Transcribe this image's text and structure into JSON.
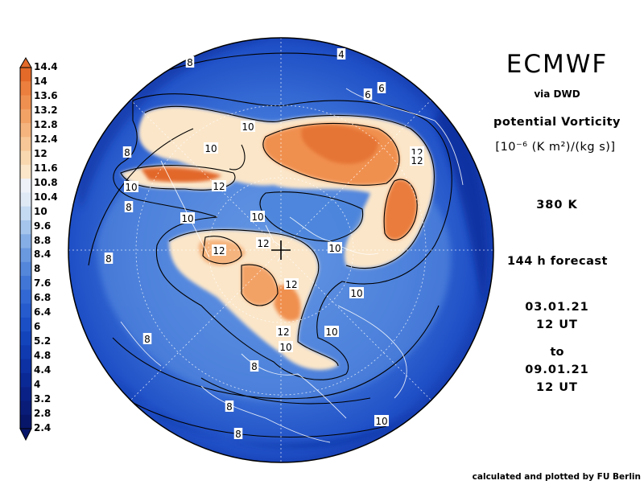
{
  "header": {
    "title": "ECMWF",
    "via": "via DWD",
    "parameter": "potential Vorticity",
    "units": "[10⁻⁶ (K m²)/(kg s)]",
    "level": "380 K",
    "forecast": "144 h forecast",
    "init_date": "03.01.21",
    "init_time": "12 UT",
    "to_label": "to",
    "valid_date": "09.01.21",
    "valid_time": "12 UT"
  },
  "footer": {
    "credit": "calculated and plotted by FU Berlin"
  },
  "colorbar": {
    "labels": [
      "14.4",
      "14",
      "13.6",
      "13.2",
      "12.8",
      "12.4",
      "12",
      "11.6",
      "10.8",
      "10.4",
      "10",
      "9.6",
      "8.8",
      "8.4",
      "8",
      "7.6",
      "6.8",
      "6.4",
      "6",
      "5.2",
      "4.8",
      "4.4",
      "4",
      "3.2",
      "2.8",
      "2.4"
    ],
    "colors": [
      "#e46a2a",
      "#ec7f3d",
      "#f09050",
      "#f3a266",
      "#f5b47e",
      "#f7c797",
      "#f9d8b0",
      "#fbe6c9",
      "#eef2f8",
      "#dfe9f6",
      "#c4d9f2",
      "#a6c5ec",
      "#86aee6",
      "#6b99e0",
      "#5486da",
      "#4176d6",
      "#3268d3",
      "#255bcd",
      "#1b4fc6",
      "#1444bc",
      "#103ab0",
      "#0d31a3",
      "#0b2995",
      "#0a2287",
      "#091c78",
      "#081669"
    ]
  },
  "contour_labels": [
    "4",
    "6",
    "6",
    "8",
    "8",
    "8",
    "8",
    "8",
    "8",
    "8",
    "8",
    "10",
    "10",
    "10",
    "10",
    "10",
    "10",
    "10",
    "10",
    "10",
    "10",
    "12",
    "12",
    "12",
    "12",
    "12",
    "12",
    "12"
  ],
  "icons": {
    "pole_marker": "plus-cross-icon",
    "bar_arrow": "triangle-arrow-icon"
  }
}
